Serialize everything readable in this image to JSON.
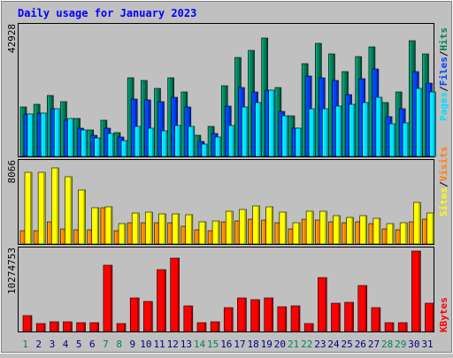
{
  "title": "Daily usage for January 2023",
  "colors": {
    "background": "#C0C0C0",
    "title": "#0000FF",
    "hits": "#00805C",
    "files": "#0040FF",
    "pages": "#00E0FF",
    "visits": "#FF8000",
    "sites": "#FFFF00",
    "kbytes": "#FF0000",
    "weekday_label": "#000080",
    "weekend_label": "#00805C",
    "separator": "#000000"
  },
  "chart_data": [
    {
      "type": "bar",
      "panel": "hits-files-pages",
      "y_max_label": "42928",
      "ylim": [
        0,
        42928
      ],
      "right_label": [
        "Pages",
        "Files",
        "Hits"
      ],
      "categories": [
        "1",
        "2",
        "3",
        "4",
        "5",
        "6",
        "7",
        "8",
        "9",
        "10",
        "11",
        "12",
        "13",
        "14",
        "15",
        "16",
        "17",
        "18",
        "19",
        "20",
        "21",
        "22",
        "23",
        "24",
        "25",
        "26",
        "27",
        "28",
        "29",
        "30",
        "31"
      ],
      "weekend_days": [
        "1",
        "7",
        "8",
        "14",
        "15",
        "21",
        "22",
        "28",
        "29"
      ],
      "series": [
        {
          "name": "Hits",
          "color": "#00805C",
          "values": [
            17500,
            18500,
            21500,
            19500,
            13500,
            9500,
            13000,
            8500,
            28000,
            27000,
            24000,
            28000,
            23000,
            7500,
            10500,
            25000,
            35000,
            37500,
            42000,
            24500,
            14500,
            33000,
            40000,
            36500,
            30000,
            35500,
            39000,
            19000,
            23000,
            41000,
            36500
          ]
        },
        {
          "name": "Files",
          "color": "#0040FF",
          "values": [
            15000,
            15500,
            17000,
            13000,
            10000,
            7500,
            10000,
            7000,
            20500,
            20000,
            19500,
            21000,
            17500,
            5200,
            8000,
            18000,
            24500,
            23000,
            23500,
            16000,
            10000,
            28500,
            28000,
            27000,
            22000,
            27500,
            31000,
            14000,
            17000,
            30000,
            26000
          ]
        },
        {
          "name": "Pages",
          "color": "#00E0FF",
          "values": [
            15000,
            15500,
            17000,
            13500,
            9500,
            6500,
            8000,
            5500,
            10500,
            10000,
            9000,
            11000,
            10500,
            4500,
            7000,
            11000,
            17500,
            19000,
            23500,
            14500,
            10000,
            17000,
            17000,
            18000,
            18500,
            19000,
            21000,
            11500,
            12000,
            24000,
            23000
          ]
        }
      ]
    },
    {
      "type": "bar",
      "panel": "visits-sites",
      "y_max_label": "8066",
      "ylim": [
        0,
        8066
      ],
      "right_label": [
        "Sites",
        "Visits"
      ],
      "categories": [
        "1",
        "2",
        "3",
        "4",
        "5",
        "6",
        "7",
        "8",
        "9",
        "10",
        "11",
        "12",
        "13",
        "14",
        "15",
        "16",
        "17",
        "18",
        "19",
        "20",
        "21",
        "22",
        "23",
        "24",
        "25",
        "26",
        "27",
        "28",
        "29",
        "30",
        "31"
      ],
      "series": [
        {
          "name": "Visits",
          "color": "#FF8000",
          "values": [
            1300,
            1300,
            2200,
            1500,
            1400,
            1400,
            3600,
            1300,
            2100,
            2100,
            2100,
            2100,
            1800,
            1400,
            1300,
            2200,
            2300,
            2500,
            2400,
            2100,
            1500,
            2500,
            2400,
            2200,
            2100,
            2200,
            2000,
            1500,
            1400,
            2200,
            2500
          ]
        },
        {
          "name": "Sites",
          "color": "#FFFF00",
          "values": [
            7200,
            7200,
            7600,
            6700,
            5400,
            3600,
            3700,
            2000,
            3100,
            3200,
            3000,
            3000,
            2900,
            2200,
            2300,
            3300,
            3500,
            3800,
            3700,
            3200,
            2100,
            3300,
            3300,
            2800,
            2700,
            2800,
            2600,
            2000,
            2100,
            4200,
            3100
          ]
        }
      ]
    },
    {
      "type": "bar",
      "panel": "kbytes",
      "y_max_label": "10274753",
      "ylim": [
        0,
        10274753
      ],
      "right_label": [
        "KBytes"
      ],
      "categories": [
        "1",
        "2",
        "3",
        "4",
        "5",
        "6",
        "7",
        "8",
        "9",
        "10",
        "11",
        "12",
        "13",
        "14",
        "15",
        "16",
        "17",
        "18",
        "19",
        "20",
        "21",
        "22",
        "23",
        "24",
        "25",
        "26",
        "27",
        "28",
        "29",
        "30",
        "31"
      ],
      "series": [
        {
          "name": "KBytes",
          "color": "#FF0000",
          "values": [
            2000000,
            1000000,
            1200000,
            1200000,
            1100000,
            1100000,
            8500000,
            1000000,
            4300000,
            3800000,
            7900000,
            9400000,
            3300000,
            1100000,
            1200000,
            3100000,
            4300000,
            4100000,
            4300000,
            3200000,
            3300000,
            1000000,
            6900000,
            3600000,
            3700000,
            5900000,
            3100000,
            1100000,
            1100000,
            10274753,
            3600000
          ]
        }
      ]
    }
  ]
}
